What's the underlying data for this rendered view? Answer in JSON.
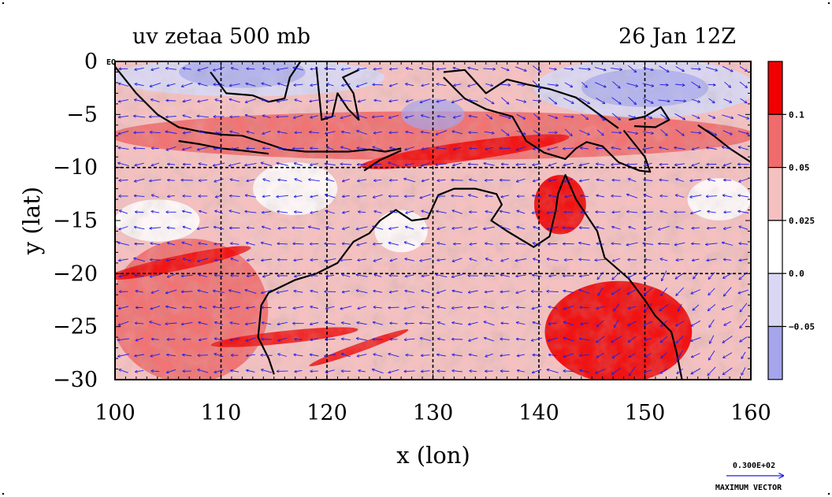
{
  "chart_data": {
    "type": "heatmap",
    "title_left": "uv zetaa 500 mb",
    "title_right": "26 Jan 12Z",
    "xlabel": "x (lon)",
    "ylabel": "y (lat)",
    "xlim": [
      100,
      160
    ],
    "ylim": [
      -30,
      0
    ],
    "x_ticks": [
      "100",
      "110",
      "120",
      "130",
      "140",
      "150",
      "160"
    ],
    "y_ticks": [
      "0",
      "−5",
      "−10",
      "−15",
      "−20",
      "−25",
      "−30"
    ],
    "eq_label": "EQ",
    "colorbar": {
      "labels": [
        "0.1",
        "0.05",
        "0.025",
        "0.0",
        "−0.05"
      ],
      "colors": [
        "#f00000",
        "#f06b6b",
        "#f5c0c0",
        "#ffffff",
        "#d8d8f4",
        "#a5a5ec"
      ]
    },
    "vector_legend": {
      "value": "0.300E+02",
      "label": "MAXIMUM VECTOR"
    },
    "grid": true,
    "field_regions": [
      {
        "level": "strong-positive",
        "lon": [
          141,
          154
        ],
        "lat": [
          -30,
          -21
        ]
      },
      {
        "level": "strong-positive",
        "lon": [
          140,
          144
        ],
        "lat": [
          -16,
          -11
        ]
      },
      {
        "level": "moderate-positive",
        "lon": [
          100,
          114
        ],
        "lat": [
          -30,
          -17
        ]
      },
      {
        "level": "moderate-positive",
        "lon": [
          100,
          160
        ],
        "lat": [
          -9,
          -5
        ]
      },
      {
        "level": "negative",
        "lon": [
          100,
          125
        ],
        "lat": [
          -3,
          0
        ]
      },
      {
        "level": "negative",
        "lon": [
          140,
          160
        ],
        "lat": [
          -5,
          0
        ]
      }
    ]
  },
  "colors": {
    "vectors": "#1e1ee6",
    "coast": "#000000",
    "grid": "#000000"
  }
}
